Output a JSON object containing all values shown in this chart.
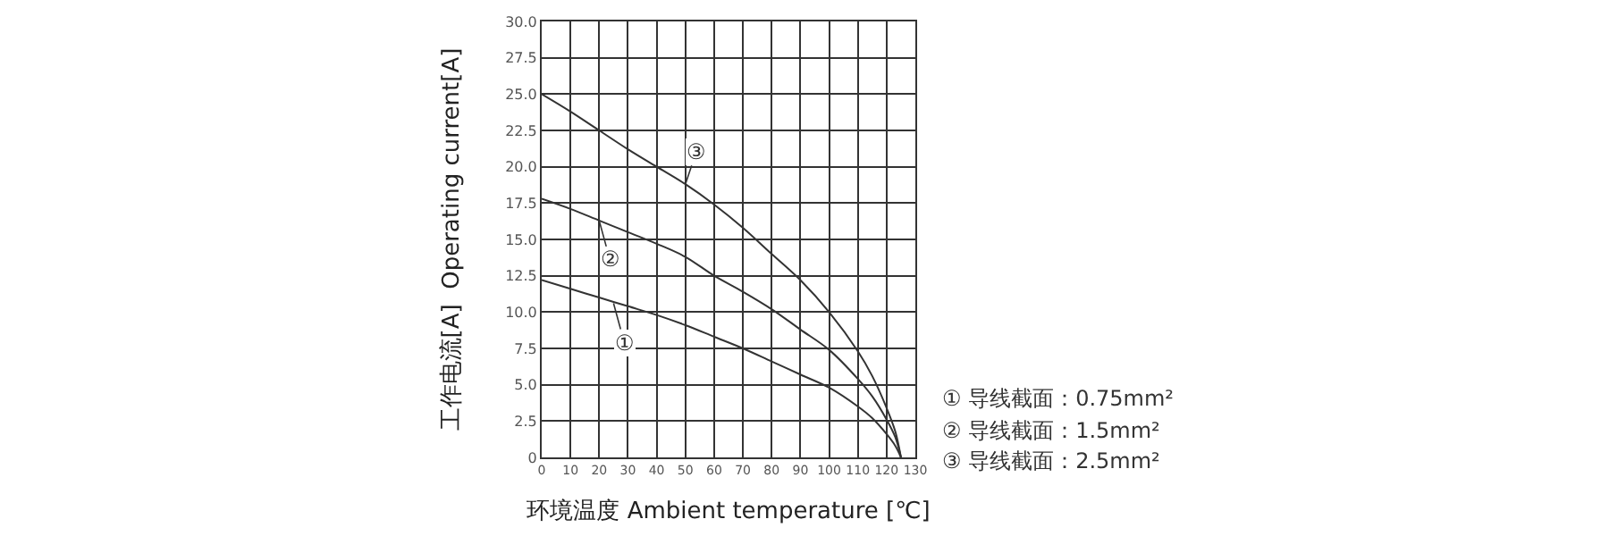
{
  "chart_data": {
    "type": "line",
    "xlabel": "环境温度 Ambient temperature [℃]",
    "ylabel": "工作电流[A]  Operating current[A]",
    "x": [
      0,
      10,
      20,
      30,
      40,
      50,
      60,
      70,
      80,
      90,
      100,
      110,
      115,
      120,
      123,
      125
    ],
    "series": [
      {
        "color": "#333333",
        "values": [
          12.2,
          11.6,
          11.0,
          10.4,
          9.8,
          9.1,
          8.3,
          7.5,
          6.6,
          5.7,
          4.8,
          3.5,
          2.7,
          1.6,
          0.8,
          0
        ]
      },
      {
        "color": "#333333",
        "values": [
          17.8,
          17.1,
          16.3,
          15.5,
          14.7,
          13.8,
          12.5,
          11.4,
          10.2,
          8.8,
          7.4,
          5.4,
          4.2,
          2.6,
          1.4,
          0
        ]
      },
      {
        "color": "#333333",
        "values": [
          25.0,
          23.8,
          22.5,
          21.2,
          20.0,
          18.8,
          17.4,
          15.8,
          14.0,
          12.2,
          10.0,
          7.3,
          5.6,
          3.4,
          1.8,
          0
        ]
      }
    ],
    "xlim": [
      0,
      130
    ],
    "xticks": [
      0,
      10,
      20,
      30,
      40,
      50,
      60,
      70,
      80,
      90,
      100,
      110,
      120,
      130
    ],
    "ylim": [
      0,
      30
    ],
    "yticks": [
      0,
      {
        "value": 2.5,
        "label": "2.5"
      },
      {
        "value": 5,
        "label": "5.0"
      },
      7.5,
      {
        "value": 10,
        "label": "10.0"
      },
      12.5,
      {
        "value": 15,
        "label": "15.0"
      },
      17.5,
      {
        "value": 20,
        "label": "20.0"
      },
      22.5,
      {
        "value": 25,
        "label": "25.0"
      },
      27.5,
      {
        "value": 30,
        "label": "30.0"
      }
    ],
    "grid": true,
    "marker": "none",
    "line_style": "solid",
    "annotations": [
      {
        "text": "③",
        "x": 50,
        "y": 18.8
      },
      {
        "text": "②",
        "x": 20,
        "y": 16.3
      },
      {
        "text": "①",
        "x": 25,
        "y": 10.6
      },
      "① 导线截面：0.75mm²",
      "② 导线截面：1.5mm²",
      "③ 导线截面：2.5mm²"
    ]
  }
}
